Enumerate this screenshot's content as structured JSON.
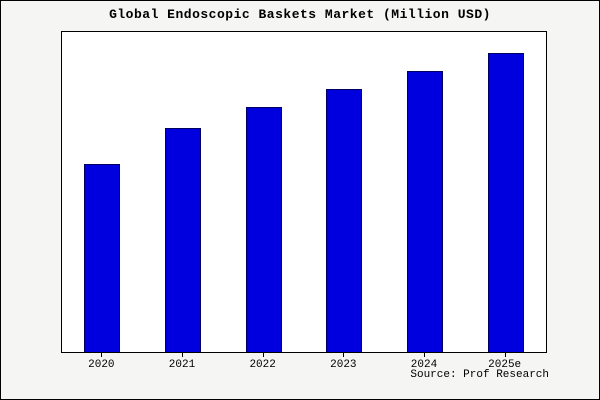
{
  "chart_data": {
    "type": "bar",
    "title": "Global Endoscopic Baskets Market (Million USD)",
    "categories": [
      "2020",
      "2021",
      "2022",
      "2023",
      "2024",
      "2025e"
    ],
    "values": [
      63,
      75,
      82,
      88,
      94,
      100
    ],
    "xlabel": "",
    "ylabel": "",
    "ylim": [
      0,
      107
    ],
    "y_axis_visible": false,
    "grid": false,
    "legend": false,
    "source": "Source: Prof Research"
  },
  "colors": {
    "bar_fill": "#0000DE",
    "bar_border": "#000060",
    "plot_bg": "#FFFFFF",
    "page_bg": "#F5F5F3",
    "text": "#000000"
  }
}
